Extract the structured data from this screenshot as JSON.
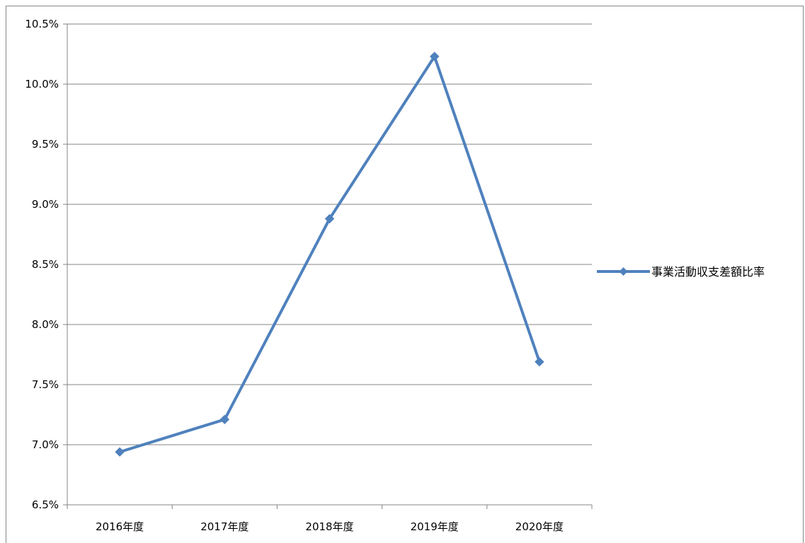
{
  "chart_data": {
    "type": "line",
    "categories": [
      "2016年度",
      "2017年度",
      "2018年度",
      "2019年度",
      "2020年度"
    ],
    "series": [
      {
        "name": "事業活動収支差額比率",
        "values": [
          6.94,
          7.21,
          8.88,
          10.23,
          7.69
        ],
        "color": "#4f81bd",
        "marker": "diamond"
      }
    ],
    "ylim": [
      6.5,
      10.5
    ],
    "y_step": 0.5,
    "y_ticks": [
      "6.5%",
      "7.0%",
      "7.5%",
      "8.0%",
      "8.5%",
      "9.0%",
      "9.5%",
      "10.0%",
      "10.5%"
    ],
    "y_unit": "%",
    "grid": true,
    "legend_position": "right",
    "title": "",
    "xlabel": "",
    "ylabel": ""
  }
}
